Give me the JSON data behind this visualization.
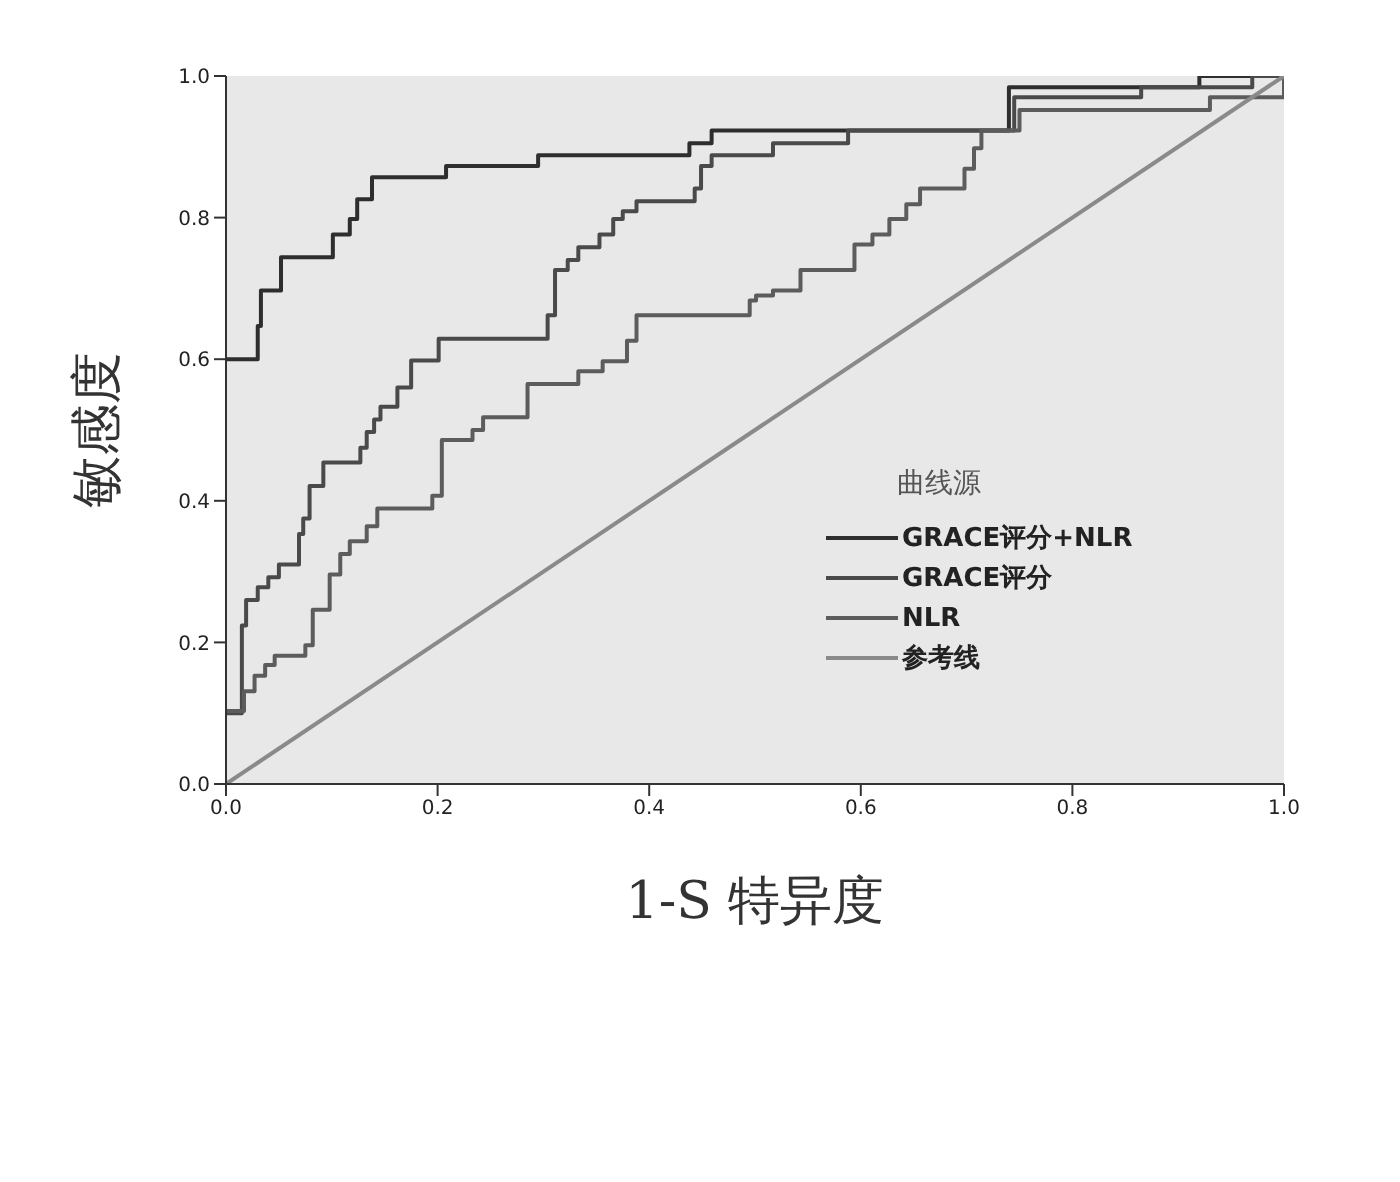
{
  "chart_data": {
    "type": "step",
    "xlabel": "1-S 特异度",
    "ylabel": "敏感度",
    "legend_title": "曲线源",
    "legend": "right",
    "grid": false,
    "marker": "none",
    "line_style": "solid",
    "xlim": [
      0,
      1
    ],
    "ylim": [
      0,
      1
    ],
    "xticks": [
      {
        "value": 0,
        "label": "0.0"
      },
      {
        "value": 0.2,
        "label": "0.2"
      },
      {
        "value": 0.4,
        "label": "0.4"
      },
      {
        "value": 0.6,
        "label": "0.6"
      },
      {
        "value": 0.8,
        "label": "0.8"
      },
      {
        "value": 1,
        "label": "1.0"
      }
    ],
    "yticks": [
      {
        "value": 0,
        "label": "0.0"
      },
      {
        "value": 0.2,
        "label": "0.2"
      },
      {
        "value": 0.4,
        "label": "0.4"
      },
      {
        "value": 0.6,
        "label": "0.6"
      },
      {
        "value": 0.8,
        "label": "0.8"
      },
      {
        "value": 1,
        "label": "1.0"
      }
    ],
    "series": [
      {
        "name": "GRACE评分+NLR",
        "color": "#2e2e2e",
        "x": [
          0,
          0.03,
          0.033,
          0.052,
          0.101,
          0.117,
          0.124,
          0.138,
          0.208,
          0.295,
          0.438,
          0.459,
          0.74,
          0.92,
          1
        ],
        "values": [
          0.6,
          0.647,
          0.697,
          0.744,
          0.776,
          0.798,
          0.826,
          0.857,
          0.873,
          0.888,
          0.905,
          0.923,
          0.984,
          1,
          1
        ]
      },
      {
        "name": "GRACE评分",
        "color": "#4a4a4a",
        "x": [
          0,
          0.015,
          0.019,
          0.03,
          0.04,
          0.05,
          0.069,
          0.073,
          0.079,
          0.092,
          0.127,
          0.133,
          0.14,
          0.146,
          0.162,
          0.175,
          0.201,
          0.304,
          0.311,
          0.323,
          0.333,
          0.353,
          0.366,
          0.375,
          0.388,
          0.443,
          0.449,
          0.459,
          0.517,
          0.588,
          0.745,
          0.865,
          0.97,
          1
        ],
        "values": [
          0.1,
          0.224,
          0.26,
          0.278,
          0.292,
          0.31,
          0.353,
          0.375,
          0.421,
          0.454,
          0.475,
          0.497,
          0.515,
          0.533,
          0.56,
          0.598,
          0.629,
          0.662,
          0.726,
          0.74,
          0.758,
          0.776,
          0.798,
          0.809,
          0.823,
          0.841,
          0.873,
          0.888,
          0.905,
          0.923,
          0.97,
          0.984,
          1,
          1
        ]
      },
      {
        "name": "NLR",
        "color": "#5c5c5c",
        "x": [
          0,
          0.017,
          0.027,
          0.037,
          0.046,
          0.075,
          0.082,
          0.098,
          0.108,
          0.117,
          0.133,
          0.143,
          0.195,
          0.204,
          0.233,
          0.243,
          0.285,
          0.333,
          0.356,
          0.379,
          0.388,
          0.495,
          0.501,
          0.517,
          0.543,
          0.594,
          0.611,
          0.627,
          0.643,
          0.656,
          0.698,
          0.707,
          0.714,
          0.75,
          0.93,
          1
        ],
        "values": [
          0.103,
          0.131,
          0.153,
          0.168,
          0.181,
          0.196,
          0.246,
          0.296,
          0.325,
          0.343,
          0.364,
          0.389,
          0.407,
          0.486,
          0.5,
          0.518,
          0.565,
          0.583,
          0.597,
          0.626,
          0.662,
          0.683,
          0.69,
          0.697,
          0.726,
          0.762,
          0.776,
          0.798,
          0.819,
          0.841,
          0.869,
          0.898,
          0.923,
          0.952,
          0.97,
          1
        ]
      },
      {
        "name": "参考线",
        "type": "line",
        "color": "#8a8a8a",
        "x": [
          0,
          1
        ],
        "values": [
          0,
          1
        ]
      }
    ]
  }
}
